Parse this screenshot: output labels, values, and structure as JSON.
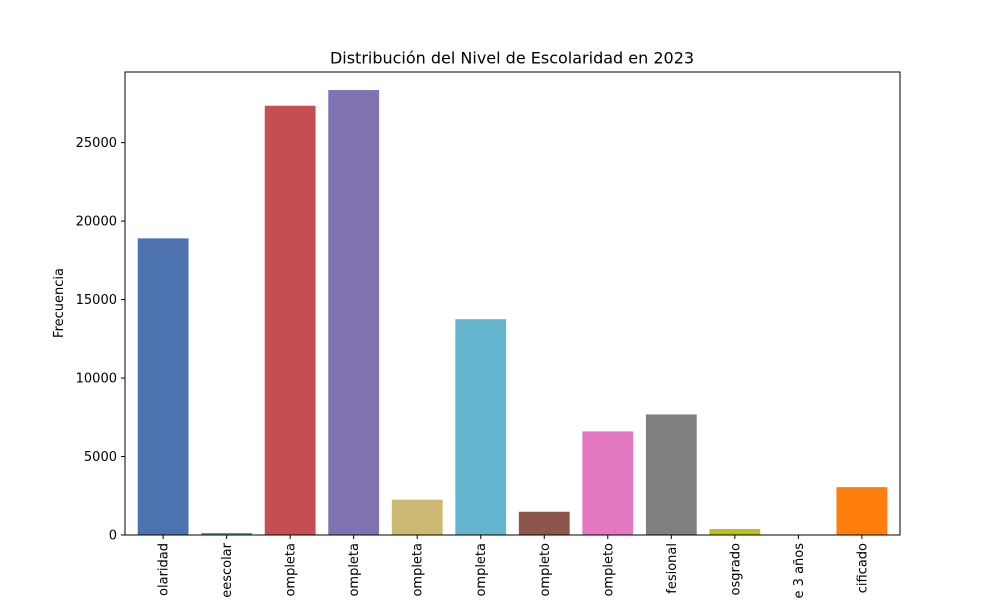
{
  "chart_data": {
    "type": "bar",
    "title": "Distribución del Nivel de Escolaridad en 2023",
    "xlabel": "",
    "ylabel": "Frecuencia",
    "ylim": [
      0,
      29500
    ],
    "yticks": [
      0,
      5000,
      10000,
      15000,
      20000,
      25000
    ],
    "grid": false,
    "categories": [
      "olaridad",
      "eescolar",
      "ompleta",
      "ompleta",
      "ompleta",
      "ompleta",
      "ompleto",
      "ompleto",
      "fesional",
      "osgrado",
      "e 3 años",
      "cificado"
    ],
    "values": [
      18900,
      130,
      27350,
      28350,
      2250,
      13750,
      1480,
      6600,
      7680,
      380,
      0,
      3050
    ],
    "colors": [
      "#4c72b0",
      "#55a868",
      "#c44e52",
      "#8172b2",
      "#ccb974",
      "#64b5cd",
      "#8c564b",
      "#e377c2",
      "#7f7f7f",
      "#bcbd22",
      "#17becf",
      "#ff7f0e"
    ]
  }
}
